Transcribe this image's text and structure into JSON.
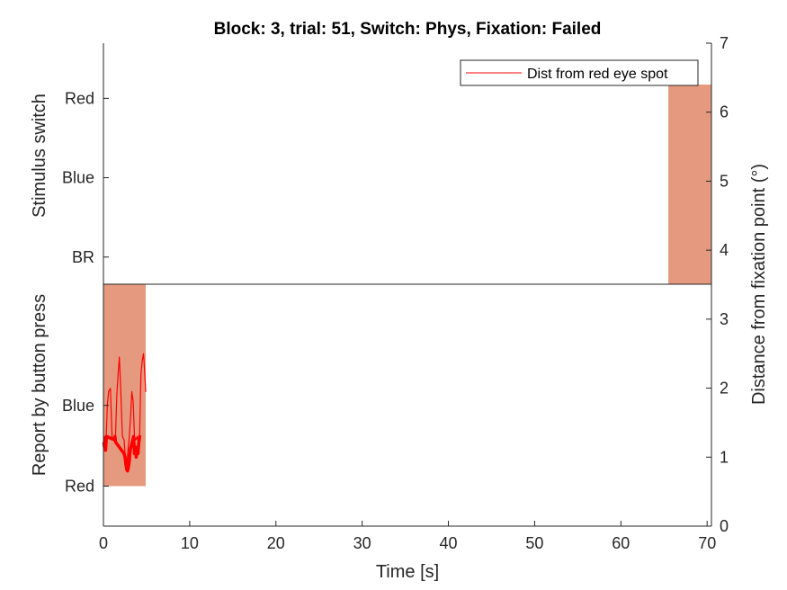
{
  "chart_data": {
    "type": "line",
    "title": "Block: 3, trial: 51, Switch: Phys, Fixation: Failed",
    "xlabel": "Time [s]",
    "xlim": [
      0,
      70.5
    ],
    "xticks": [
      0,
      10,
      20,
      30,
      40,
      50,
      60,
      70
    ],
    "right_axis": {
      "ylabel": "Distance from fixation point (°)",
      "ylim": [
        0,
        7
      ],
      "yticks": [
        0,
        1,
        2,
        3,
        4,
        5,
        6,
        7
      ]
    },
    "upper_panel": {
      "ylabel": "Stimulus switch",
      "categories": [
        "BR",
        "Blue",
        "Red"
      ],
      "category_levels": [
        3.9,
        5.05,
        6.2
      ],
      "shaded_intervals": [
        {
          "x": [
            65.5,
            70.5
          ],
          "y": [
            3.5,
            6.4
          ]
        }
      ]
    },
    "lower_panel": {
      "ylabel": "Report by button press",
      "categories": [
        "Red",
        "Blue"
      ],
      "category_levels": [
        0.58,
        1.75
      ],
      "shaded_intervals": [
        {
          "x": [
            0,
            4.9
          ],
          "y": [
            0.58,
            3.5
          ]
        }
      ]
    },
    "shade_color": "#e59a7f",
    "series": [
      {
        "name": "Dist from red eye spot",
        "color": "#ff0000",
        "x": [
          0,
          0.15,
          0.3,
          0.45,
          0.6,
          0.8,
          1.0,
          1.2,
          1.4,
          1.55,
          1.7,
          1.85,
          2.0,
          2.2,
          2.4,
          2.55,
          2.7,
          2.85,
          3.0,
          3.15,
          3.3,
          3.45,
          3.6,
          3.75,
          3.9,
          4.05,
          4.2,
          4.35,
          4.5,
          4.65,
          4.8,
          4.9
        ],
        "y": [
          1.25,
          1.3,
          1.2,
          1.75,
          1.95,
          2.0,
          1.3,
          1.25,
          1.3,
          1.9,
          2.2,
          2.45,
          2.0,
          1.3,
          1.25,
          0.95,
          0.85,
          1.1,
          1.3,
          1.6,
          1.95,
          1.8,
          1.3,
          1.25,
          1.3,
          1.2,
          1.35,
          2.2,
          2.4,
          2.5,
          2.2,
          1.95
        ]
      },
      {
        "name": "",
        "color": "#ff0000",
        "x": [
          0.05,
          0.1,
          0.2,
          0.25,
          0.35,
          1.3,
          1.35,
          1.4,
          2.4,
          2.5,
          2.6,
          2.7,
          2.8,
          2.9,
          3.0,
          3.1,
          3.5,
          3.6,
          3.7,
          3.8,
          3.9,
          4.0,
          4.1,
          4.2
        ],
        "y": [
          1.2,
          1.15,
          1.28,
          1.1,
          1.3,
          1.25,
          1.3,
          1.22,
          1.05,
          1.0,
          0.9,
          0.82,
          0.8,
          0.85,
          0.95,
          1.1,
          1.3,
          1.05,
          1.15,
          1.0,
          1.1,
          1.05,
          1.2,
          1.3
        ]
      }
    ],
    "legend": {
      "position": "top-right",
      "entries": [
        "Dist from red eye spot"
      ]
    },
    "grid": false
  }
}
